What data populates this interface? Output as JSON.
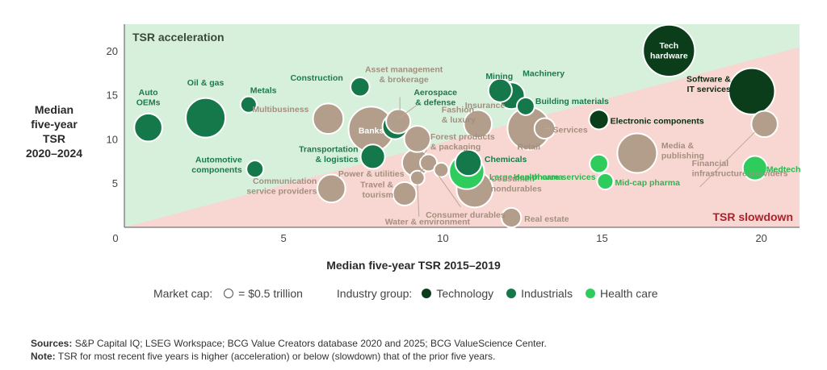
{
  "chart_data": {
    "type": "scatter",
    "xlabel": "Median five-year TSR 2015–2019",
    "ylabel": [
      "Median",
      "five-year",
      "TSR",
      "2020–2024"
    ],
    "xlim": [
      0,
      21.2
    ],
    "ylim": [
      0,
      23
    ],
    "x_ticks": [
      0,
      5,
      10,
      15,
      20
    ],
    "y_ticks": [
      5,
      10,
      15,
      20
    ],
    "region_labels": {
      "acceleration": "TSR acceleration",
      "slowdown": "TSR slowdown"
    },
    "group_colors": {
      "technology": "#0b3d1a",
      "industrials": "#15784a",
      "health": "#2ecc5c",
      "other": "#b39e8c",
      "label_other": "#a48f7f",
      "label_industrials": "#1b7a4c",
      "label_health": "#2eb54f",
      "acceleration_bg": "#d7f0dc",
      "slowdown_bg": "#f8d7d2",
      "slowdown_label": "#b0202a"
    },
    "points": [
      {
        "name": "Auto OEMs",
        "x": 0.75,
        "y": 11.3,
        "size": 0.3,
        "group": "industrials",
        "label": [
          "Auto",
          "OEMs"
        ]
      },
      {
        "name": "Oil & gas",
        "x": 2.55,
        "y": 12.4,
        "size": 0.75,
        "group": "industrials",
        "label": [
          "Oil & gas"
        ]
      },
      {
        "name": "Metals",
        "x": 3.9,
        "y": 13.9,
        "size": 0.05,
        "group": "industrials",
        "label": [
          "Metals"
        ]
      },
      {
        "name": "Automotive components",
        "x": 4.1,
        "y": 6.6,
        "size": 0.06,
        "group": "industrials",
        "label": [
          "Automotive",
          "components"
        ]
      },
      {
        "name": "Multibusiness",
        "x": 6.4,
        "y": 12.3,
        "size": 0.38,
        "group": "other",
        "label": [
          "Multibusiness"
        ]
      },
      {
        "name": "Communication service providers",
        "x": 6.5,
        "y": 4.4,
        "size": 0.3,
        "group": "other",
        "label": [
          "Communication",
          "service providers"
        ]
      },
      {
        "name": "Construction",
        "x": 7.4,
        "y": 15.9,
        "size": 0.09,
        "group": "industrials",
        "label": [
          "Construction"
        ]
      },
      {
        "name": "Banks",
        "x": 7.75,
        "y": 11.1,
        "size": 1.05,
        "group": "other",
        "label": [
          "Banks"
        ]
      },
      {
        "name": "Transportation & logistics",
        "x": 7.8,
        "y": 8.0,
        "size": 0.2,
        "group": "industrials",
        "label": [
          "Transportation",
          "& logistics"
        ]
      },
      {
        "name": "Asset management & brokerage",
        "x": 8.6,
        "y": 12.0,
        "size": 0.2,
        "group": "other",
        "label": [
          "Asset management",
          "& brokerage"
        ]
      },
      {
        "name": "Aerospace & defense",
        "x": 8.5,
        "y": 11.4,
        "size": 0.22,
        "group": "industrials",
        "label": [
          "Aerospace",
          "& defense"
        ]
      },
      {
        "name": "Travel & tourism",
        "x": 8.8,
        "y": 3.8,
        "size": 0.18,
        "group": "other",
        "label": [
          "Travel &",
          "tourism"
        ]
      },
      {
        "name": "Fashion & luxury",
        "x": 9.2,
        "y": 10.0,
        "size": 0.25,
        "group": "other",
        "label": [
          "Fashion",
          "& luxury"
        ]
      },
      {
        "name": "Forest products & packaging",
        "x": 9.15,
        "y": 7.3,
        "size": 0.28,
        "group": "other",
        "label": [
          "Forest products",
          "& packaging"
        ]
      },
      {
        "name": "Power & utilities",
        "x": 9.55,
        "y": 7.3,
        "size": 0.06,
        "group": "other",
        "label": [
          "Power & utilities"
        ]
      },
      {
        "name": "Water & environment",
        "x": 9.2,
        "y": 5.6,
        "size": 0.03,
        "group": "other",
        "label": [
          "Water & environment"
        ]
      },
      {
        "name": "Large-cap pharma",
        "x": 10.75,
        "y": 6.3,
        "size": 0.55,
        "group": "health",
        "label": [
          "Large-cap pharma"
        ]
      },
      {
        "name": "Chemicals",
        "x": 10.8,
        "y": 7.3,
        "size": 0.25,
        "group": "industrials",
        "label": [
          "Chemicals"
        ]
      },
      {
        "name": "Consumer nondurables",
        "x": 11.0,
        "y": 4.3,
        "size": 0.6,
        "group": "other",
        "label": [
          "Consumer",
          "nondurables"
        ]
      },
      {
        "name": "Consumer durables",
        "x": 9.95,
        "y": 6.5,
        "size": 0.03,
        "group": "other",
        "label": [
          "Consumer durables"
        ]
      },
      {
        "name": "Insurance",
        "x": 11.1,
        "y": 11.7,
        "size": 0.3,
        "group": "other",
        "label": [
          "Insurance"
        ]
      },
      {
        "name": "Mining",
        "x": 11.8,
        "y": 15.5,
        "size": 0.18,
        "group": "industrials",
        "label": [
          "Mining"
        ]
      },
      {
        "name": "Machinery",
        "x": 12.15,
        "y": 14.9,
        "size": 0.26,
        "group": "industrials",
        "label": [
          "Machinery"
        ]
      },
      {
        "name": "Building materials",
        "x": 12.6,
        "y": 13.7,
        "size": 0.07,
        "group": "industrials",
        "label": [
          "Building materials"
        ]
      },
      {
        "name": "Retail",
        "x": 12.7,
        "y": 11.2,
        "size": 0.9,
        "group": "other",
        "label": [
          "Retail"
        ]
      },
      {
        "name": "Services",
        "x": 13.2,
        "y": 11.2,
        "size": 0.12,
        "group": "other",
        "label": [
          "Services"
        ]
      },
      {
        "name": "Real estate",
        "x": 12.15,
        "y": 1.1,
        "size": 0.1,
        "group": "other",
        "label": [
          "Real estate"
        ]
      },
      {
        "name": "Electronic components",
        "x": 14.9,
        "y": 12.2,
        "size": 0.1,
        "group": "technology",
        "label": [
          "Electronic components"
        ]
      },
      {
        "name": "Health care services",
        "x": 14.9,
        "y": 7.2,
        "size": 0.08,
        "group": "health",
        "label": [
          "Health care services"
        ]
      },
      {
        "name": "Mid-cap pharma",
        "x": 15.1,
        "y": 5.2,
        "size": 0.05,
        "group": "health",
        "label": [
          "Mid-cap pharma"
        ]
      },
      {
        "name": "Media & publishing",
        "x": 16.1,
        "y": 8.4,
        "size": 0.75,
        "group": "other",
        "label": [
          "Media &",
          "publishing"
        ]
      },
      {
        "name": "Tech hardware",
        "x": 17.1,
        "y": 20.0,
        "size": 1.45,
        "group": "technology",
        "label": [
          "Tech",
          "hardware"
        ]
      },
      {
        "name": "Software & IT services",
        "x": 19.7,
        "y": 15.4,
        "size": 1.1,
        "group": "technology",
        "label": [
          "Software &",
          "IT services"
        ]
      },
      {
        "name": "Financial infrastructure providers",
        "x": 20.1,
        "y": 11.7,
        "size": 0.25,
        "group": "other",
        "label": [
          "Financial",
          "infrastructure providers"
        ]
      },
      {
        "name": "Medtech",
        "x": 19.8,
        "y": 6.7,
        "size": 0.2,
        "group": "health",
        "label": [
          "Medtech"
        ]
      }
    ]
  },
  "legend": {
    "market_cap_label": "Market cap:",
    "market_cap_value": "= $0.5 trillion",
    "industry_group_label": "Industry group:",
    "groups": [
      {
        "label": "Technology",
        "color": "#0b3d1a"
      },
      {
        "label": "Industrials",
        "color": "#15784a"
      },
      {
        "label": "Health care",
        "color": "#2ecc5c"
      }
    ]
  },
  "footer": {
    "sources_label": "Sources:",
    "sources_text": "S&P Capital IQ; LSEG Workspace; BCG Value Creators database 2020 and 2025; BCG ValueScience Center.",
    "note_label": "Note:",
    "note_text": "TSR for most recent five years is higher (acceleration) or below (slowdown) that of the prior five years."
  }
}
